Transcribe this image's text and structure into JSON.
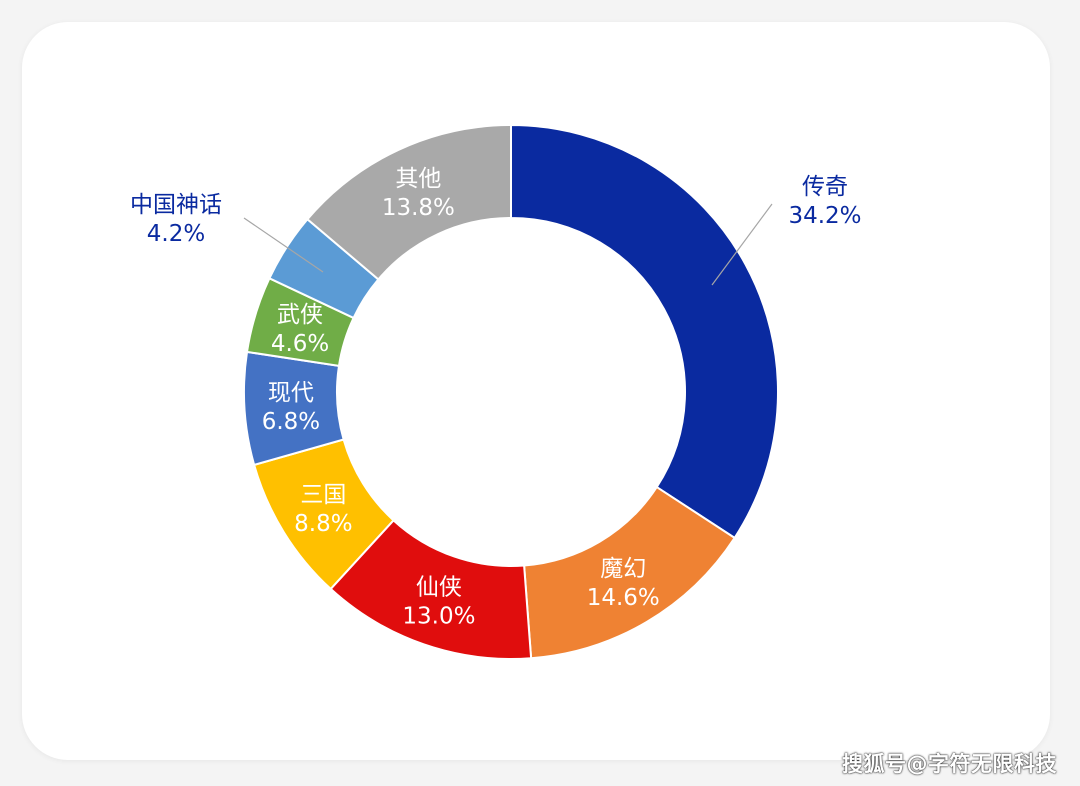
{
  "chart_data": {
    "type": "pie",
    "donut": true,
    "categories": [
      "传奇",
      "魔幻",
      "仙侠",
      "三国",
      "现代",
      "武侠",
      "中国神话",
      "其他"
    ],
    "values": [
      34.2,
      14.6,
      13.0,
      8.8,
      6.8,
      4.6,
      4.2,
      13.8
    ],
    "value_labels": [
      "34.2%",
      "14.6%",
      "13.0%",
      "8.8%",
      "6.8%",
      "4.6%",
      "4.2%",
      "13.8%"
    ],
    "colors": [
      "#0a2aa0",
      "#ef8233",
      "#e00d0d",
      "#ffc000",
      "#4472c4",
      "#70ad47",
      "#5b9bd5",
      "#a9a9a9"
    ],
    "callout_color": "#0a2aa0"
  },
  "source_label": "搜狐号@字符无限科技"
}
